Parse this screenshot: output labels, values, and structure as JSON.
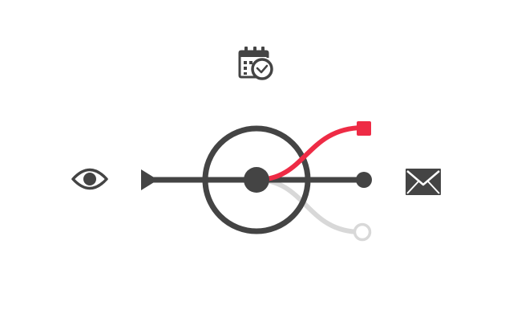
{
  "colors": {
    "background": "#ffffff",
    "main_line": "#444444",
    "active_branch": "#ee2b45",
    "inactive_branch": "#d8d8d8",
    "icon": "#444444"
  },
  "icons": {
    "top": "calendar-clock-icon",
    "left": "eye-icon",
    "right": "envelope-icon"
  },
  "diagram": {
    "type": "flow-switch",
    "main_path": "input-to-output",
    "branches": [
      {
        "name": "upper",
        "state": "active",
        "end_marker": "square"
      },
      {
        "name": "lower",
        "state": "inactive",
        "end_marker": "open-circle"
      }
    ]
  }
}
